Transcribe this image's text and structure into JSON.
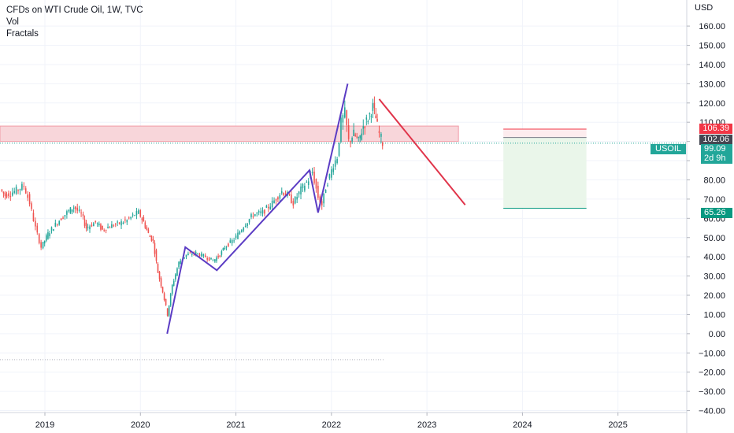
{
  "legend": {
    "title": "CFDs on WTI Crude Oil, 1W, TVC",
    "indicator_1": "Vol",
    "indicator_2": "Fractals"
  },
  "price_axis": {
    "currency": "USD"
  },
  "symbol_label": "USOIL",
  "price_tags": {
    "stop": "106.39",
    "entry": "102.06",
    "last": "99.09",
    "countdown": "2d 9h",
    "target": "65.26"
  },
  "colors": {
    "up": "#26a69a",
    "down": "#ef5350",
    "pattern_line": "#5b3cc4",
    "forecast_line": "#e0344a",
    "zone_fill": "#f8d6da",
    "zone_border": "#f19aa6",
    "target_fill": "#eaf6ea",
    "stop_tag": "#f23645",
    "entry_tag": "#434651",
    "last_tag": "#22a699",
    "target_tag": "#089981"
  },
  "chart_data": {
    "type": "candlestick",
    "title": "CFDs on WTI Crude Oil, 1W, TVC",
    "xlabel": "",
    "ylabel": "USD",
    "x_ticks": [
      "2019",
      "2020",
      "2021",
      "2022",
      "2023",
      "2024",
      "2025"
    ],
    "y_ticks": [
      -40,
      -30,
      -20,
      -10,
      0,
      10,
      20,
      30,
      40,
      50,
      60,
      70,
      80,
      90,
      100,
      110,
      120,
      130,
      140,
      150,
      160
    ],
    "ylim": [
      -41,
      167
    ],
    "xlim": [
      2018.53,
      2025.72
    ],
    "grid": true,
    "series": [
      {
        "kind": "price_path",
        "points": [
          [
            2018.55,
            75
          ],
          [
            2018.6,
            72
          ],
          [
            2018.7,
            74
          ],
          [
            2018.8,
            77
          ],
          [
            2018.86,
            68
          ],
          [
            2018.92,
            55
          ],
          [
            2018.98,
            45
          ],
          [
            2019.05,
            52
          ],
          [
            2019.15,
            58
          ],
          [
            2019.25,
            63
          ],
          [
            2019.32,
            66
          ],
          [
            2019.4,
            62
          ],
          [
            2019.45,
            55
          ],
          [
            2019.55,
            58
          ],
          [
            2019.62,
            54
          ],
          [
            2019.7,
            56
          ],
          [
            2019.78,
            57
          ],
          [
            2019.88,
            59
          ],
          [
            2019.96,
            62
          ],
          [
            2020.0,
            63
          ],
          [
            2020.05,
            58
          ],
          [
            2020.1,
            52
          ],
          [
            2020.15,
            48
          ],
          [
            2020.2,
            32
          ],
          [
            2020.25,
            22
          ],
          [
            2020.3,
            10
          ],
          [
            2020.35,
            25
          ],
          [
            2020.42,
            37
          ],
          [
            2020.5,
            41
          ],
          [
            2020.6,
            42
          ],
          [
            2020.7,
            40
          ],
          [
            2020.78,
            38
          ],
          [
            2020.85,
            41
          ],
          [
            2020.9,
            45
          ],
          [
            2021.0,
            49
          ],
          [
            2021.1,
            56
          ],
          [
            2021.2,
            62
          ],
          [
            2021.3,
            63
          ],
          [
            2021.4,
            68
          ],
          [
            2021.5,
            74
          ],
          [
            2021.56,
            72
          ],
          [
            2021.62,
            68
          ],
          [
            2021.7,
            75
          ],
          [
            2021.78,
            80
          ],
          [
            2021.82,
            84
          ],
          [
            2021.88,
            71
          ],
          [
            2021.92,
            67
          ],
          [
            2021.96,
            76
          ],
          [
            2022.0,
            82
          ],
          [
            2022.04,
            88
          ],
          [
            2022.08,
            92
          ],
          [
            2022.12,
            110
          ],
          [
            2022.16,
            115
          ],
          [
            2022.2,
            100
          ],
          [
            2022.25,
            104
          ],
          [
            2022.3,
            100
          ],
          [
            2022.35,
            108
          ],
          [
            2022.4,
            112
          ],
          [
            2022.45,
            118
          ],
          [
            2022.48,
            112
          ],
          [
            2022.52,
            104
          ],
          [
            2022.55,
            99.09
          ]
        ]
      },
      {
        "kind": "volume_pattern",
        "points": [
          [
            2020.28,
            0
          ],
          [
            2020.47,
            45
          ],
          [
            2020.8,
            33
          ],
          [
            2021.77,
            85
          ],
          [
            2021.86,
            63
          ],
          [
            2022.17,
            130
          ]
        ]
      },
      {
        "kind": "forecast",
        "points": [
          [
            2022.5,
            122
          ],
          [
            2023.4,
            67
          ]
        ]
      }
    ],
    "resistance_zone": [
      100,
      108
    ],
    "short_position": {
      "entry": 102.06,
      "stop": 106.39,
      "target": 65.26,
      "x_range": [
        2023.8,
        2024.67
      ]
    },
    "last_price": 99.09,
    "reference_line": -13.5
  }
}
